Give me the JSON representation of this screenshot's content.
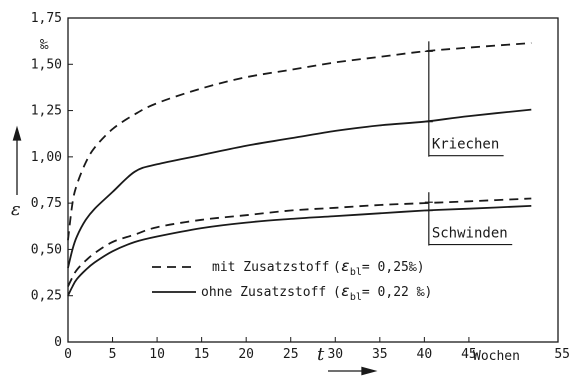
{
  "chart_data": {
    "type": "line",
    "title": "",
    "xlabel": "t",
    "ylabel": "ε",
    "y_unit": "‰",
    "x_unit": "Wochen",
    "xlim": [
      0,
      55
    ],
    "ylim": [
      0,
      1.75
    ],
    "x_ticks": [
      "0",
      "5",
      "10",
      "15",
      "20",
      "25",
      "30",
      "35",
      "40",
      "45",
      "55"
    ],
    "y_ticks": [
      "0",
      "0,25",
      "0,50",
      "0,75",
      "1,00",
      "1,25",
      "1,50",
      "1,75"
    ],
    "grid": false,
    "legend_position": "bottom-left",
    "legend": [
      {
        "style": "dashed",
        "label": "mit Zusatzstoff",
        "formula_pre": "(",
        "symbol": "ε",
        "subscript": "bl",
        "formula_post": "= 0,25‰)"
      },
      {
        "style": "solid",
        "label": "ohne Zusatzstoff",
        "formula_pre": "(",
        "symbol": "ε",
        "subscript": "bl",
        "formula_post": "= 0,22 ‰)"
      }
    ],
    "series": [
      {
        "style": "dashed",
        "x": [
          0,
          0.5,
          1,
          2,
          3,
          5,
          7.5,
          10,
          15,
          20,
          25,
          30,
          35,
          40,
          45,
          52
        ],
        "y": [
          0.55,
          0.75,
          0.85,
          0.97,
          1.05,
          1.15,
          1.23,
          1.29,
          1.37,
          1.43,
          1.47,
          1.51,
          1.54,
          1.57,
          1.59,
          1.615
        ]
      },
      {
        "style": "solid",
        "x": [
          0,
          0.5,
          1,
          2,
          3,
          5,
          7.5,
          10,
          15,
          20,
          25,
          30,
          35,
          40,
          45,
          52
        ],
        "y": [
          0.4,
          0.5,
          0.57,
          0.66,
          0.72,
          0.81,
          0.92,
          0.96,
          1.01,
          1.06,
          1.1,
          1.14,
          1.17,
          1.19,
          1.22,
          1.255
        ]
      },
      {
        "style": "dashed",
        "x": [
          0,
          0.5,
          1,
          2,
          3,
          5,
          7.5,
          10,
          15,
          20,
          25,
          30,
          35,
          40,
          45,
          52
        ],
        "y": [
          0.3,
          0.35,
          0.39,
          0.44,
          0.48,
          0.54,
          0.58,
          0.62,
          0.66,
          0.685,
          0.71,
          0.725,
          0.74,
          0.75,
          0.76,
          0.775
        ]
      },
      {
        "style": "solid",
        "x": [
          0,
          0.5,
          1,
          2,
          3,
          5,
          7.5,
          10,
          15,
          20,
          25,
          30,
          35,
          40,
          45,
          52
        ],
        "y": [
          0.25,
          0.3,
          0.34,
          0.39,
          0.43,
          0.49,
          0.54,
          0.57,
          0.615,
          0.645,
          0.665,
          0.68,
          0.695,
          0.71,
          0.72,
          0.735
        ]
      }
    ],
    "annotations": [
      {
        "label": "Kriechen",
        "x": 40.5,
        "y_top": 1.57,
        "y_bottom": 1.19
      },
      {
        "label": "Schwinden",
        "x": 40.5,
        "y_top": 0.755,
        "y_bottom": 0.71
      }
    ]
  }
}
